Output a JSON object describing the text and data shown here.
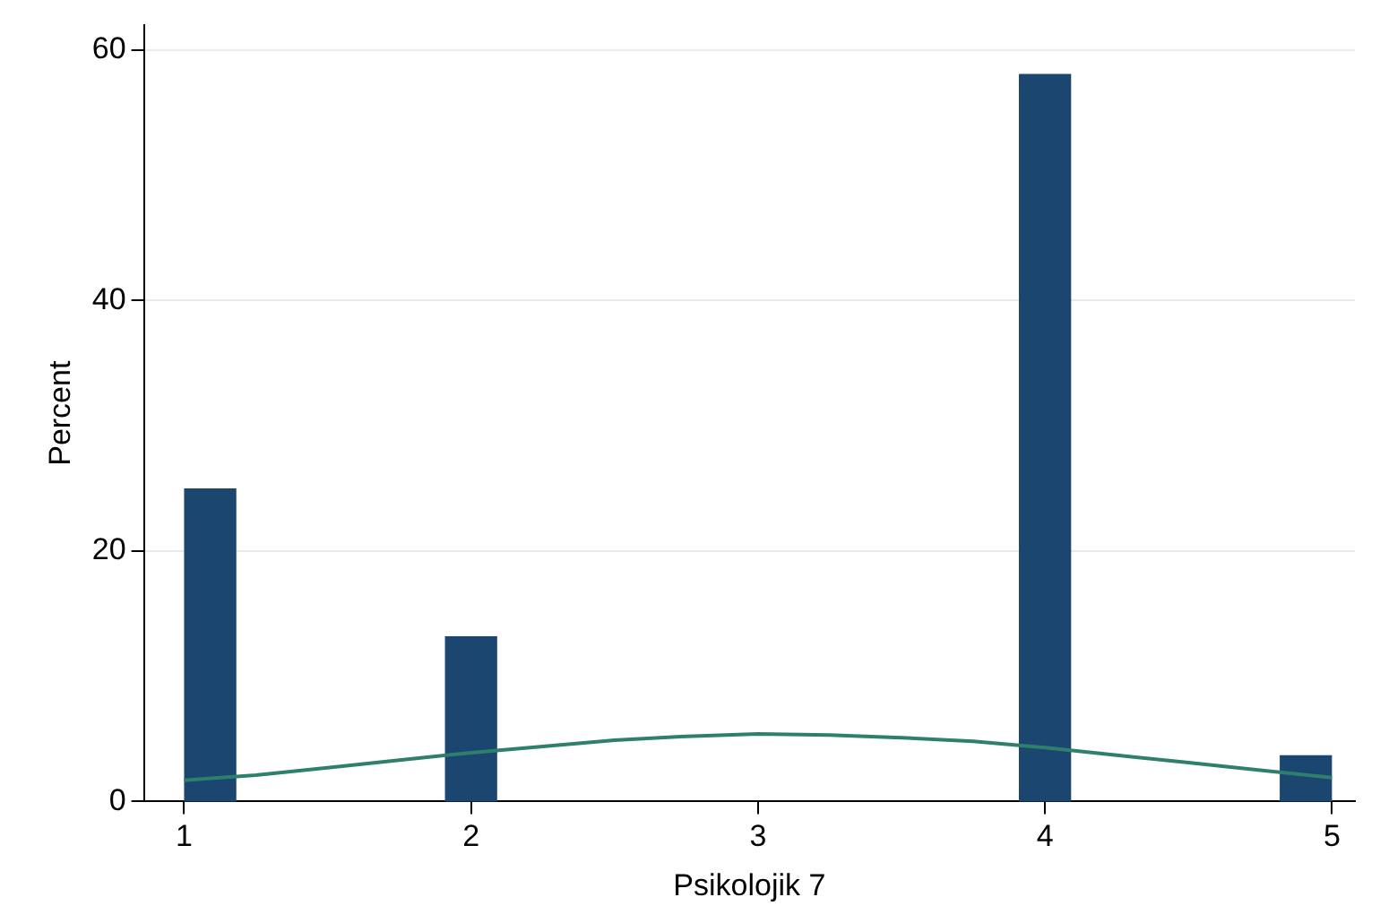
{
  "chart_data": {
    "type": "histogram",
    "xlabel": "Psikolojik 7",
    "ylabel": "Percent",
    "bins": [
      1,
      1.182,
      1.364,
      1.545,
      1.727,
      1.909,
      2.091,
      2.273,
      2.455,
      2.636,
      2.818,
      3,
      3.182,
      3.364,
      3.545,
      3.727,
      3.909,
      4.091,
      4.273,
      4.455,
      4.636,
      4.818,
      5
    ],
    "values": [
      25,
      0,
      0,
      0,
      0,
      13.2,
      0,
      0,
      0,
      0,
      0,
      0,
      0,
      0,
      0,
      0,
      58.1,
      0,
      0,
      0,
      0,
      3.7
    ],
    "color": "#1a4670",
    "xlim": [
      0.86,
      5.08
    ],
    "ylim": [
      0,
      62
    ],
    "xticks": [
      1,
      2,
      3,
      4,
      5
    ],
    "yticks": [
      0,
      20,
      40,
      60
    ],
    "grid": "y",
    "series": [
      {
        "type": "line",
        "color": "#2e7f6c",
        "x": [
          1,
          1.25,
          1.5,
          1.75,
          2,
          2.25,
          2.5,
          2.75,
          3,
          3.25,
          3.5,
          3.75,
          4,
          4.25,
          4.5,
          4.75,
          5
        ],
        "values": [
          1.7,
          2.1,
          2.7,
          3.3,
          3.9,
          4.4,
          4.9,
          5.2,
          5.4,
          5.3,
          5.1,
          4.8,
          4.3,
          3.7,
          3.1,
          2.5,
          1.9
        ]
      }
    ]
  }
}
